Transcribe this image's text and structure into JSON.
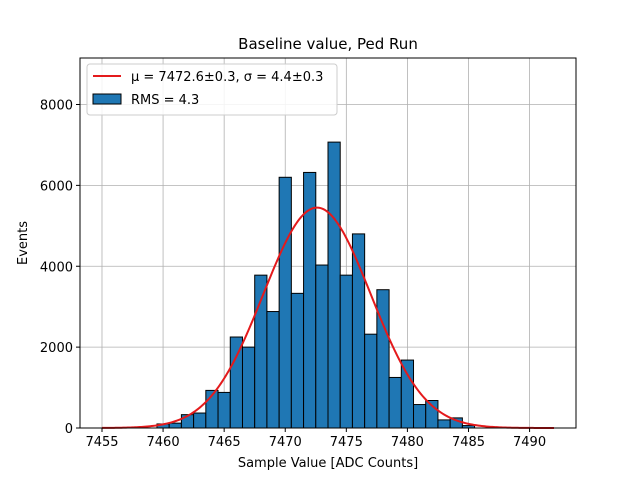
{
  "chart_data": {
    "type": "bar",
    "title": "Baseline value, Ped Run",
    "xlabel": "Sample Value [ADC Counts]",
    "ylabel": "Events",
    "xlim": [
      7453.2,
      7493.8
    ],
    "ylim": [
      0,
      9150
    ],
    "x_ticks": [
      7455,
      7460,
      7465,
      7470,
      7475,
      7480,
      7485,
      7490
    ],
    "y_ticks": [
      0,
      2000,
      4000,
      6000,
      8000
    ],
    "grid": true,
    "legend_position": "top-left",
    "colors": {
      "bars": "#1f77b4",
      "bar_edge": "#000000",
      "fit": "#e41a1c",
      "grid": "#b0b0b0"
    },
    "histogram": {
      "name": "RMS = 4.3",
      "bin_width": 1,
      "bins": [
        {
          "x": 7460,
          "count": 100
        },
        {
          "x": 7461,
          "count": 120
        },
        {
          "x": 7462,
          "count": 330
        },
        {
          "x": 7463,
          "count": 370
        },
        {
          "x": 7464,
          "count": 930
        },
        {
          "x": 7465,
          "count": 880
        },
        {
          "x": 7466,
          "count": 2250
        },
        {
          "x": 7467,
          "count": 2000
        },
        {
          "x": 7468,
          "count": 3780
        },
        {
          "x": 7469,
          "count": 2880
        },
        {
          "x": 7470,
          "count": 6200
        },
        {
          "x": 7471,
          "count": 3330
        },
        {
          "x": 7472,
          "count": 6320
        },
        {
          "x": 7473,
          "count": 4030
        },
        {
          "x": 7474,
          "count": 7070
        },
        {
          "x": 7475,
          "count": 3780
        },
        {
          "x": 7476,
          "count": 4800
        },
        {
          "x": 7477,
          "count": 2320
        },
        {
          "x": 7478,
          "count": 3420
        },
        {
          "x": 7479,
          "count": 1250
        },
        {
          "x": 7480,
          "count": 1680
        },
        {
          "x": 7481,
          "count": 580
        },
        {
          "x": 7482,
          "count": 680
        },
        {
          "x": 7483,
          "count": 200
        },
        {
          "x": 7484,
          "count": 250
        },
        {
          "x": 7485,
          "count": 60
        }
      ]
    },
    "fit": {
      "name": "μ = 7472.6±0.3, σ = 4.4±0.3",
      "type": "gaussian",
      "mu": 7472.6,
      "sigma": 4.4,
      "amplitude": 5450,
      "x_range": [
        7455,
        7492
      ]
    }
  }
}
